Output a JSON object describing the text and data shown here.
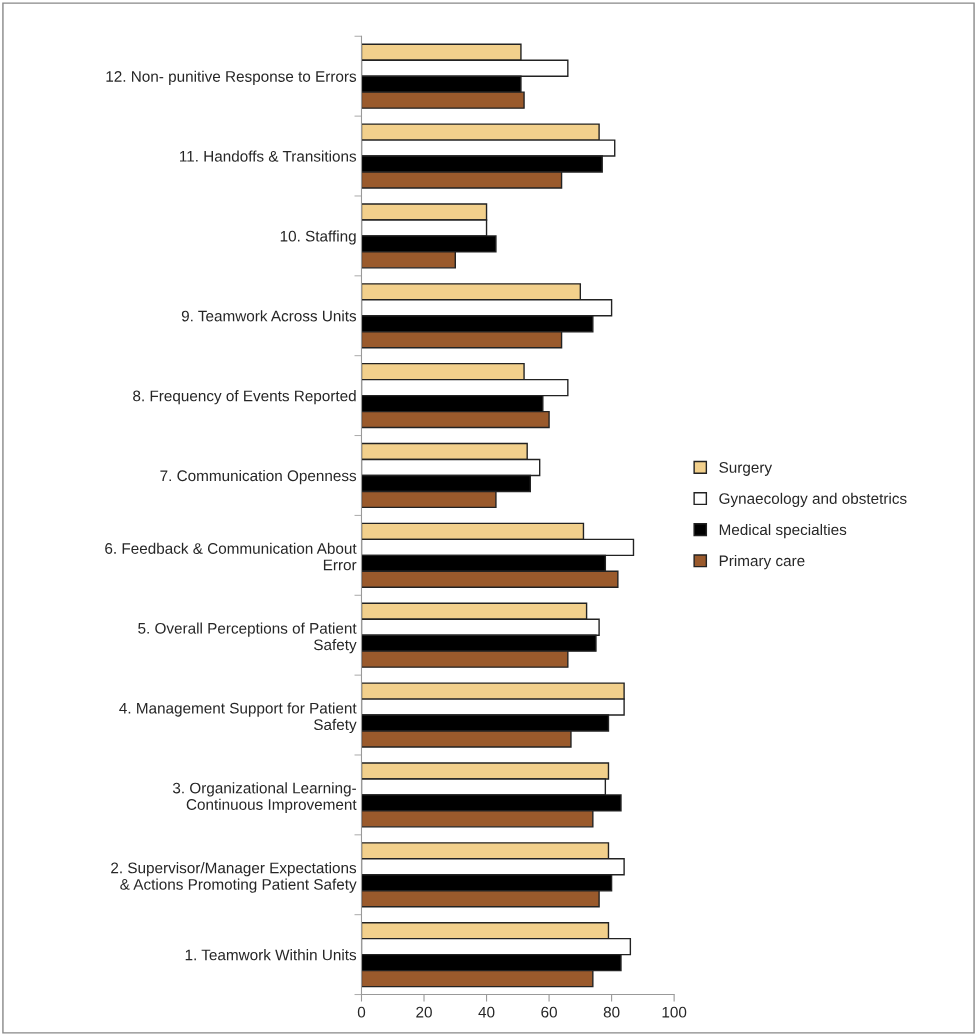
{
  "chart_data": {
    "type": "bar",
    "orientation": "horizontal",
    "categories": [
      "12. Non- punitive Response to Errors",
      "11. Handoffs & Transitions",
      "10. Staffing",
      "9. Teamwork Across Units",
      "8. Frequency of Events Reported",
      "7. Communication Openness",
      "6. Feedback & Communication About\nError",
      "5. Overall Perceptions of Patient\nSafety",
      "4. Management Support for Patient\nSafety",
      "3. Organizational Learning-\nContinuous Improvement",
      "2. Supervisor/Manager Expectations\n& Actions Promoting Patient Safety",
      "1. Teamwork Within Units"
    ],
    "series": [
      {
        "name": "Surgery",
        "color": "#f2d08c",
        "values": [
          51,
          76,
          40,
          70,
          52,
          53,
          71,
          72,
          84,
          79,
          79,
          79
        ]
      },
      {
        "name": "Gynaecology and obstetrics",
        "color": "#ffffff",
        "values": [
          66,
          81,
          40,
          80,
          66,
          57,
          87,
          76,
          84,
          78,
          84,
          86
        ]
      },
      {
        "name": "Medical specialties",
        "color": "#000000",
        "values": [
          51,
          77,
          43,
          74,
          58,
          54,
          78,
          75,
          79,
          83,
          80,
          83
        ]
      },
      {
        "name": "Primary care",
        "color": "#9a5a2c",
        "values": [
          52,
          64,
          30,
          64,
          60,
          43,
          82,
          66,
          67,
          74,
          76,
          74
        ]
      }
    ],
    "xlim": [
      0,
      100
    ],
    "xticks": [
      0,
      20,
      40,
      60,
      80,
      100
    ],
    "grid": false,
    "legend": "right"
  }
}
